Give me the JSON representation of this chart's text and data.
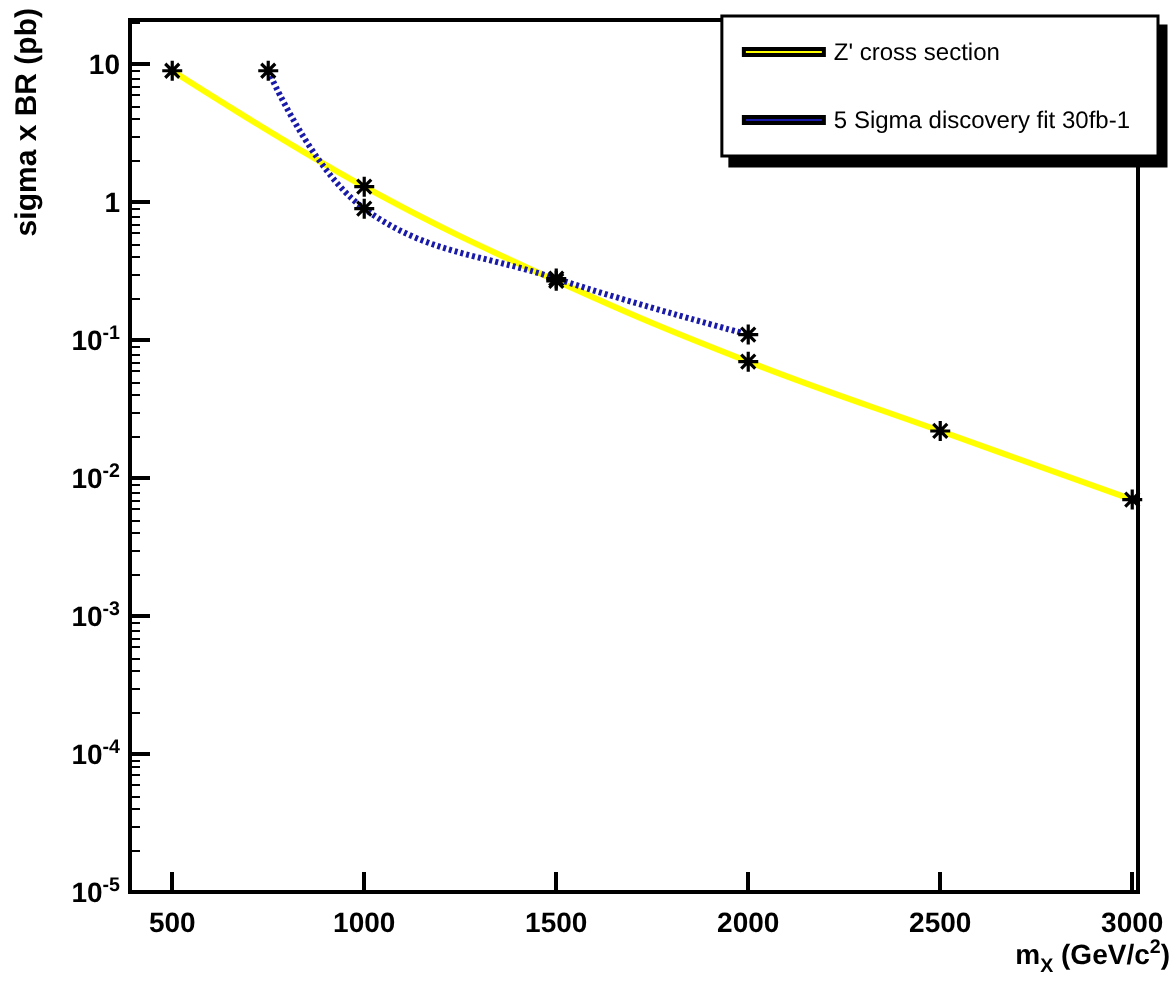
{
  "chart_data": {
    "type": "line",
    "xlabel": "m$_{X}$ (GeV/c$^{2}$)",
    "ylabel": "sigma x BR (pb)",
    "log": "y",
    "grid": false,
    "legend": "top right",
    "marker": "cross",
    "xlim": [
      390,
      3015
    ],
    "xticks": [
      500,
      1000,
      1500,
      2000,
      2500,
      3000
    ],
    "ylim": [
      1e-05,
      21
    ],
    "yticks": [
      {
        "value": 1e-05,
        "label": "10$^{-5}$"
      },
      {
        "value": 0.0001,
        "label": "10$^{-4}$"
      },
      {
        "value": 0.001,
        "label": "10$^{-3}$"
      },
      {
        "value": 0.01,
        "label": "10$^{-2}$"
      },
      {
        "value": 0.1,
        "label": "10$^{-1}$"
      },
      1,
      10
    ],
    "series": [
      {
        "name": "Z' cross section",
        "color": "#ffff00",
        "line_style": "solid",
        "x": [
          500,
          1000,
          1500,
          2000,
          2500,
          3000
        ],
        "values": [
          9,
          1.3,
          0.27,
          0.07,
          0.022,
          0.007
        ]
      },
      {
        "name": "5 Sigma discovery fit 30fb-1",
        "color": "#1a1aa8",
        "line_style": "dotted",
        "x": [
          750,
          1000,
          1500,
          2000
        ],
        "values": [
          9,
          0.9,
          0.28,
          0.11
        ]
      }
    ]
  }
}
